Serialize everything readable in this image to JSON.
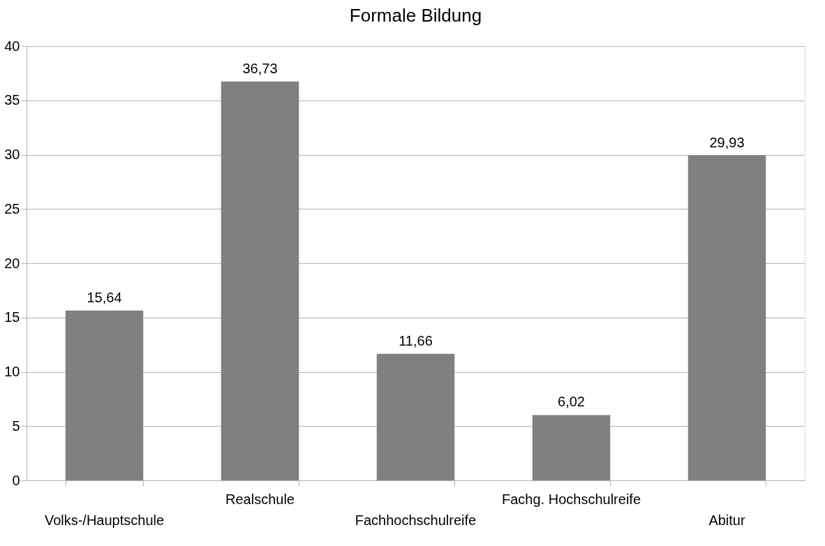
{
  "chart_data": {
    "type": "bar",
    "title": "Formale Bildung",
    "categories": [
      "Volks-/Hauptschule",
      "Realschule",
      "Fachhochschulreife",
      "Fachg. Hochschulreife",
      "Abitur"
    ],
    "values": [
      15.64,
      36.73,
      11.66,
      6.02,
      29.93
    ],
    "value_labels": [
      "15,64",
      "36,73",
      "11,66",
      "6,02",
      "29,93"
    ],
    "color": "#808080",
    "ylim": [
      0,
      40
    ],
    "yticks": [
      0,
      5,
      10,
      15,
      20,
      25,
      30,
      35,
      40
    ],
    "grid": "y"
  }
}
